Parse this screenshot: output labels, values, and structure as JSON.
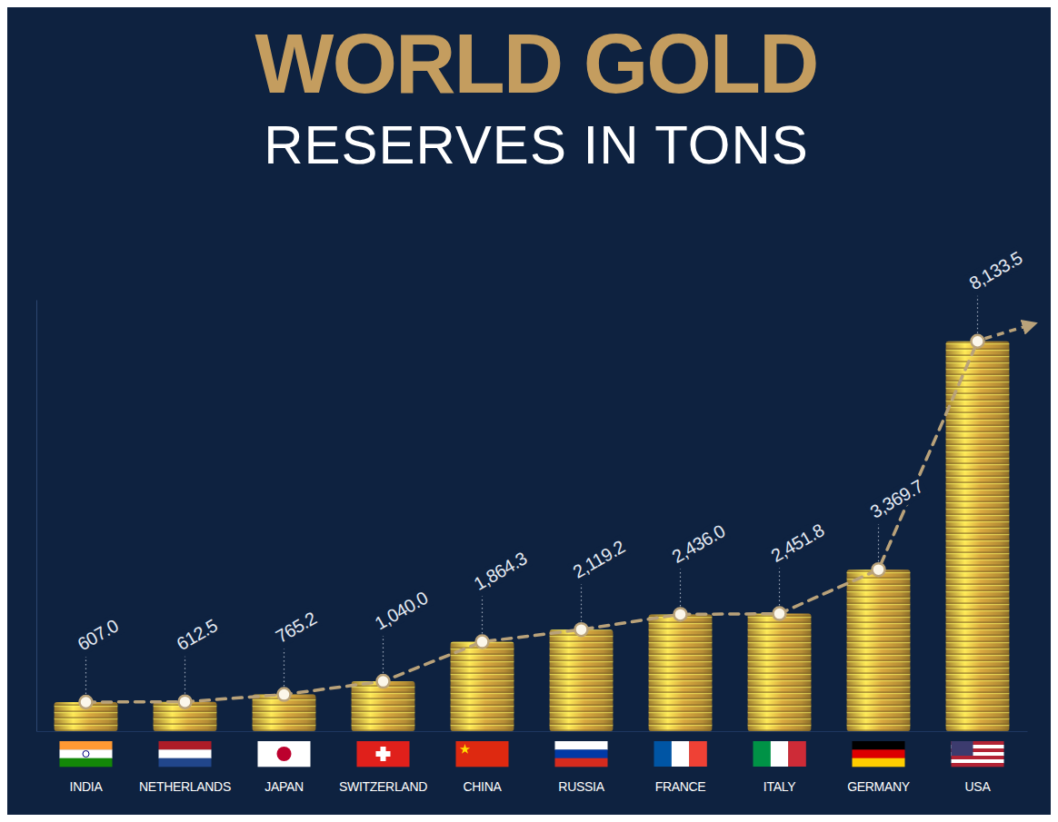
{
  "chart_data": {
    "type": "bar",
    "title": "WORLD GOLD",
    "subtitle": "RESERVES IN TONS",
    "categories": [
      "INDIA",
      "NETHERLANDS",
      "JAPAN",
      "SWITZERLAND",
      "CHINA",
      "RUSSIA",
      "FRANCE",
      "ITALY",
      "GERMANY",
      "USA"
    ],
    "values": [
      607.0,
      612.5,
      765.2,
      1040.0,
      1864.3,
      2119.2,
      2436.0,
      2451.8,
      3369.7,
      8133.5
    ],
    "value_labels": [
      "607.0",
      "612.5",
      "765.2",
      "1,040.0",
      "1,864.3",
      "2,119.2",
      "2,436.0",
      "2,451.8",
      "3,369.7",
      "8,133.5"
    ],
    "data_labels": true,
    "color": "#d9a93f",
    "marker": "circle",
    "line_style": "dashed",
    "ylim": [
      0,
      9000
    ],
    "yticks": [],
    "tick_labels": "x",
    "grid": false
  }
}
